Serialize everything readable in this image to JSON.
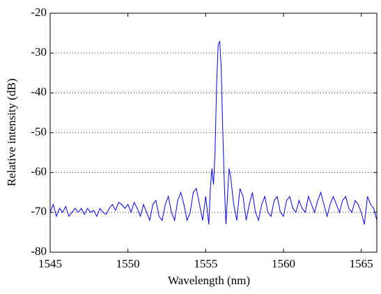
{
  "chart_data": {
    "type": "line",
    "x_label": "Wavelength (nm)",
    "y_label": "Relative intensity (dB)",
    "xlim": [
      1545,
      1566
    ],
    "ylim": [
      -80,
      -20
    ],
    "xticks": [
      1545,
      1550,
      1555,
      1560,
      1565
    ],
    "yticks": [
      -80,
      -70,
      -60,
      -50,
      -40,
      -30,
      -20
    ],
    "grid": "dotted",
    "series": [
      {
        "color": "#0000ff",
        "x": [
          1545.0,
          1545.2,
          1545.4,
          1545.6,
          1545.8,
          1546.0,
          1546.2,
          1546.4,
          1546.6,
          1546.8,
          1547.0,
          1547.2,
          1547.4,
          1547.6,
          1547.8,
          1548.0,
          1548.2,
          1548.4,
          1548.6,
          1548.8,
          1549.0,
          1549.2,
          1549.4,
          1549.6,
          1549.8,
          1550.0,
          1550.2,
          1550.4,
          1550.6,
          1550.8,
          1551.0,
          1551.2,
          1551.4,
          1551.6,
          1551.8,
          1552.0,
          1552.2,
          1552.4,
          1552.6,
          1552.8,
          1553.0,
          1553.2,
          1553.4,
          1553.6,
          1553.8,
          1554.0,
          1554.2,
          1554.4,
          1554.6,
          1554.8,
          1555.0,
          1555.2,
          1555.3,
          1555.4,
          1555.5,
          1555.6,
          1555.7,
          1555.8,
          1555.9,
          1556.0,
          1556.1,
          1556.2,
          1556.3,
          1556.4,
          1556.5,
          1556.6,
          1556.8,
          1557.0,
          1557.2,
          1557.4,
          1557.6,
          1557.8,
          1558.0,
          1558.2,
          1558.4,
          1558.6,
          1558.8,
          1559.0,
          1559.2,
          1559.4,
          1559.6,
          1559.8,
          1560.0,
          1560.2,
          1560.4,
          1560.6,
          1560.8,
          1561.0,
          1561.2,
          1561.4,
          1561.6,
          1561.8,
          1562.0,
          1562.2,
          1562.4,
          1562.6,
          1562.8,
          1563.0,
          1563.2,
          1563.4,
          1563.6,
          1563.8,
          1564.0,
          1564.2,
          1564.4,
          1564.6,
          1564.8,
          1565.0,
          1565.2,
          1565.4,
          1565.6,
          1565.8,
          1566.0
        ],
        "values": [
          -70,
          -68,
          -71,
          -69,
          -70,
          -68.5,
          -71,
          -70,
          -69,
          -70,
          -69,
          -70.5,
          -69,
          -70,
          -69.5,
          -71,
          -69,
          -70,
          -70.5,
          -69,
          -68,
          -69.5,
          -67.5,
          -68,
          -69,
          -68,
          -70,
          -67.5,
          -69,
          -71,
          -68,
          -70,
          -72,
          -68,
          -67,
          -71,
          -72,
          -68,
          -66,
          -70,
          -72,
          -67,
          -65,
          -68,
          -72,
          -70,
          -65,
          -64,
          -68,
          -72,
          -66,
          -73,
          -64,
          -59,
          -63,
          -55,
          -38,
          -28,
          -27,
          -34,
          -50,
          -63,
          -73,
          -66,
          -59,
          -61,
          -68,
          -72,
          -64,
          -66,
          -72,
          -68,
          -65,
          -70,
          -72,
          -68,
          -66,
          -70,
          -71,
          -67,
          -66,
          -70,
          -71,
          -67,
          -66,
          -69,
          -70,
          -67,
          -69,
          -70,
          -66,
          -68,
          -70,
          -67,
          -65,
          -68,
          -71,
          -68,
          -66,
          -68,
          -70,
          -67,
          -66,
          -69,
          -70,
          -67,
          -68,
          -70,
          -73,
          -66,
          -68,
          -69,
          -72
        ]
      }
    ]
  }
}
